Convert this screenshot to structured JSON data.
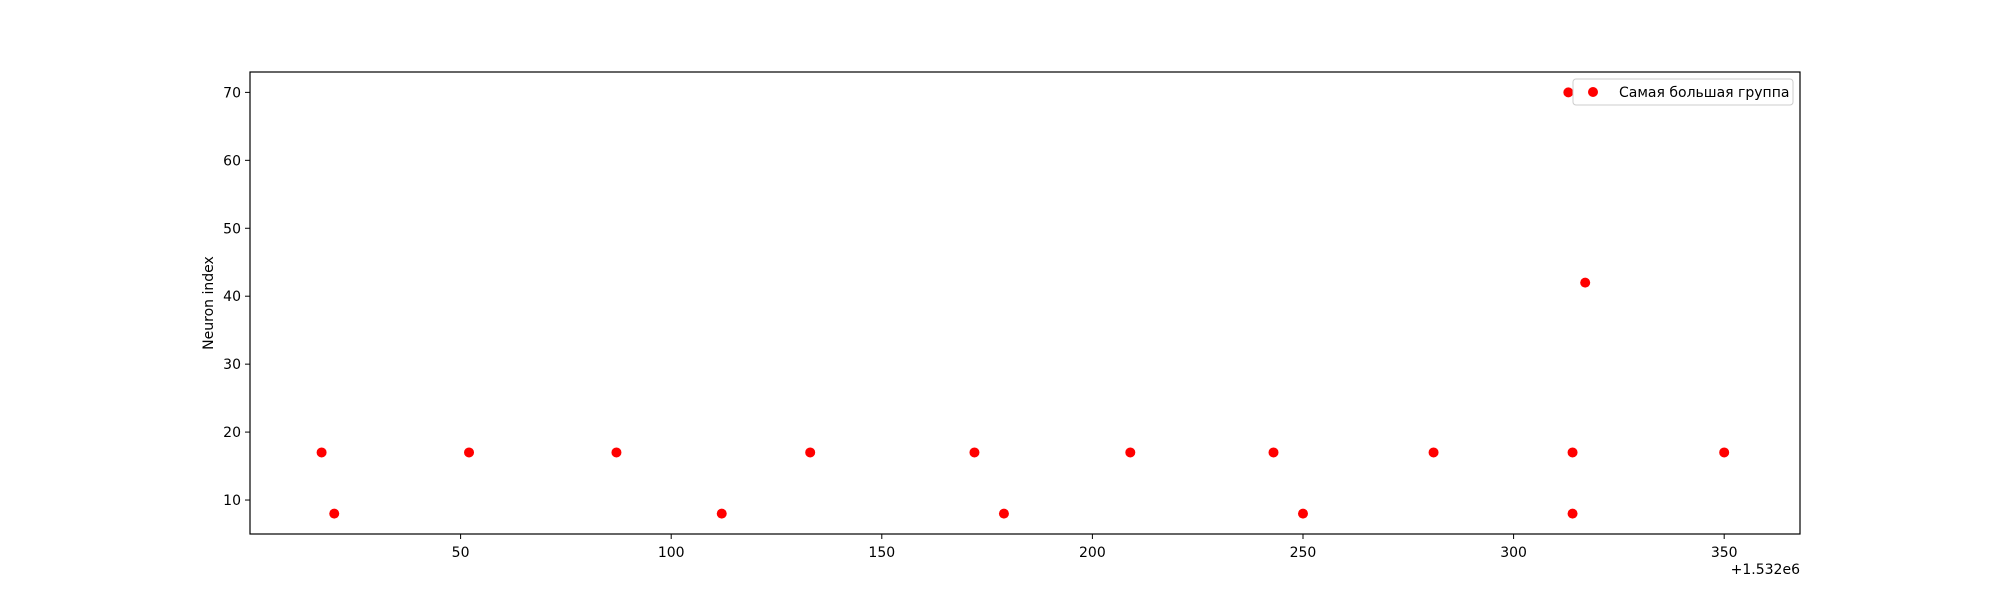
{
  "chart_data": {
    "type": "scatter",
    "title": "",
    "xlabel": "",
    "ylabel": "Neuron index",
    "x_offset_label": "+1.532e6",
    "xlim": [
      0,
      368
    ],
    "ylim": [
      5,
      73
    ],
    "xticks": [
      50,
      100,
      150,
      200,
      250,
      300,
      350
    ],
    "yticks": [
      10,
      20,
      30,
      40,
      50,
      60,
      70
    ],
    "grid": false,
    "legend_position": "top-right",
    "series": [
      {
        "name": "Самая большая группа",
        "color": "#ff0000",
        "points": [
          {
            "x": 17,
            "y": 17
          },
          {
            "x": 20,
            "y": 8
          },
          {
            "x": 52,
            "y": 17
          },
          {
            "x": 87,
            "y": 17
          },
          {
            "x": 112,
            "y": 8
          },
          {
            "x": 133,
            "y": 17
          },
          {
            "x": 172,
            "y": 17
          },
          {
            "x": 179,
            "y": 8
          },
          {
            "x": 209,
            "y": 17
          },
          {
            "x": 243,
            "y": 17
          },
          {
            "x": 250,
            "y": 8
          },
          {
            "x": 281,
            "y": 17
          },
          {
            "x": 313,
            "y": 70
          },
          {
            "x": 314,
            "y": 17
          },
          {
            "x": 314,
            "y": 8
          },
          {
            "x": 317,
            "y": 42
          },
          {
            "x": 350,
            "y": 17
          }
        ]
      }
    ]
  }
}
